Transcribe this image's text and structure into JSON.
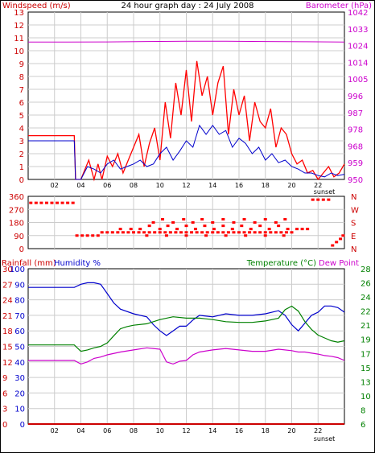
{
  "title": "24 hour graph day : 24 July 2008",
  "colors": {
    "wind": "#ff0000",
    "gust": "#ff0000",
    "speed": "#0000cc",
    "baro": "#cc00cc",
    "rain": "#cc0000",
    "humidity": "#0000cc",
    "temp": "#008000",
    "dew": "#cc00cc",
    "grid": "#cccccc",
    "frame": "#000000"
  },
  "hour_ticks": [
    "02",
    "04",
    "06",
    "08",
    "10",
    "12",
    "14",
    "16",
    "18",
    "20",
    "22"
  ],
  "sunset_label": "sunset",
  "chart_data": [
    {
      "type": "line",
      "title": "24 hour graph day : 24 July 2008",
      "left_label": "Windspeed (m/s)",
      "right_label": "Barometer (hPa)",
      "left_ticks": [
        "13",
        "12",
        "11",
        "10",
        "9",
        "8",
        "7",
        "6",
        "5",
        "4",
        "3",
        "2",
        "1",
        "0"
      ],
      "right_ticks": [
        "1042",
        "1033",
        "1024",
        "1014",
        "1005",
        "996",
        "987",
        "978",
        "968",
        "959",
        "950"
      ],
      "ylim_left": [
        0,
        13
      ],
      "ylim_right": [
        950,
        1042
      ],
      "x_range_hours": [
        0,
        24
      ],
      "series": [
        {
          "key": "gust",
          "x": [
            0,
            3.5,
            3.6,
            4,
            4.6,
            5,
            5.3,
            5.6,
            6,
            6.4,
            6.8,
            7.2,
            7.6,
            8,
            8.4,
            8.8,
            9.2,
            9.6,
            10,
            10.4,
            10.8,
            11.2,
            11.6,
            12,
            12.4,
            12.8,
            13.2,
            13.6,
            14,
            14.4,
            14.8,
            15.2,
            15.6,
            16,
            16.4,
            16.8,
            17.2,
            17.6,
            18,
            18.4,
            18.8,
            19.2,
            19.6,
            20,
            20.4,
            20.8,
            21.2,
            21.6,
            22,
            22.4,
            22.8,
            23.2,
            23.6,
            24
          ],
          "values": [
            3.4,
            3.4,
            0,
            0,
            1.5,
            0,
            1.2,
            0,
            1.8,
            1,
            2,
            0.5,
            1.5,
            2.5,
            3.5,
            1,
            2.8,
            4,
            1.5,
            6,
            3.2,
            7.5,
            5,
            8.5,
            4.5,
            9.2,
            6.5,
            8,
            5,
            7.5,
            8.8,
            3.5,
            7,
            5,
            6.5,
            3,
            6,
            4.5,
            4,
            5.5,
            2.5,
            4,
            3.5,
            2,
            1.2,
            1.5,
            0.5,
            0.7,
            0,
            0.5,
            1,
            0.2,
            0.5,
            1.2
          ]
        },
        {
          "key": "speed",
          "x": [
            0,
            3.5,
            3.6,
            4,
            4.5,
            5,
            5.5,
            6,
            6.5,
            7,
            7.5,
            8,
            8.5,
            9,
            9.5,
            10,
            10.5,
            11,
            11.5,
            12,
            12.5,
            13,
            13.5,
            14,
            14.5,
            15,
            15.5,
            16,
            16.5,
            17,
            17.5,
            18,
            18.5,
            19,
            19.5,
            20,
            20.5,
            21,
            21.5,
            22,
            22.5,
            23,
            23.5,
            24
          ],
          "values": [
            3,
            3,
            0,
            0,
            1,
            0.8,
            0.5,
            1.2,
            1.5,
            0.8,
            1,
            1.2,
            1.5,
            1,
            1.2,
            2,
            2.5,
            1.5,
            2.2,
            3,
            2.5,
            4.2,
            3.5,
            4.2,
            3.5,
            3.8,
            2.5,
            3.2,
            2.8,
            2,
            2.5,
            1.5,
            2,
            1.3,
            1.5,
            1,
            0.8,
            0.5,
            0.5,
            0.3,
            0.2,
            0.5,
            0.3,
            0.4
          ]
        },
        {
          "key": "baro",
          "x": [
            0,
            3,
            6,
            9,
            12,
            15,
            18,
            21,
            24
          ],
          "values": [
            1025.5,
            1025.5,
            1025.6,
            1025.8,
            1026,
            1026,
            1025.8,
            1025.7,
            1025.5
          ]
        }
      ]
    },
    {
      "type": "scatter",
      "title": "Wind direction",
      "left_ticks": [
        "360",
        "270",
        "180",
        "90",
        "0"
      ],
      "right_ticks": [
        "N",
        "W",
        "S",
        "E",
        "N"
      ],
      "ylim": [
        0,
        360
      ],
      "x_range_hours": [
        0,
        24
      ],
      "points": [
        [
          0.2,
          315
        ],
        [
          0.6,
          315
        ],
        [
          1,
          315
        ],
        [
          1.4,
          315
        ],
        [
          1.8,
          315
        ],
        [
          2.2,
          315
        ],
        [
          2.6,
          315
        ],
        [
          3,
          315
        ],
        [
          3.4,
          315
        ],
        [
          3.7,
          90
        ],
        [
          4.1,
          90
        ],
        [
          4.5,
          90
        ],
        [
          4.9,
          90
        ],
        [
          5.3,
          90
        ],
        [
          5.6,
          112
        ],
        [
          6,
          112
        ],
        [
          6.4,
          112
        ],
        [
          6.8,
          112
        ],
        [
          7.2,
          112
        ],
        [
          7.6,
          112
        ],
        [
          8,
          112
        ],
        [
          8.4,
          112
        ],
        [
          8.8,
          112
        ],
        [
          9.2,
          112
        ],
        [
          9.6,
          112
        ],
        [
          10,
          112
        ],
        [
          10.4,
          112
        ],
        [
          10.8,
          112
        ],
        [
          11.2,
          112
        ],
        [
          11.6,
          112
        ],
        [
          12,
          112
        ],
        [
          12.4,
          112
        ],
        [
          12.8,
          112
        ],
        [
          13.2,
          112
        ],
        [
          13.6,
          112
        ],
        [
          14,
          112
        ],
        [
          14.4,
          112
        ],
        [
          14.8,
          112
        ],
        [
          15.2,
          112
        ],
        [
          15.6,
          112
        ],
        [
          16,
          112
        ],
        [
          16.4,
          112
        ],
        [
          16.8,
          112
        ],
        [
          17.2,
          112
        ],
        [
          17.6,
          112
        ],
        [
          18,
          112
        ],
        [
          18.4,
          112
        ],
        [
          18.8,
          112
        ],
        [
          19.2,
          112
        ],
        [
          19.6,
          112
        ],
        [
          20,
          112
        ],
        [
          7,
          135
        ],
        [
          7.8,
          135
        ],
        [
          8.5,
          135
        ],
        [
          9.2,
          157
        ],
        [
          10,
          135
        ],
        [
          10.6,
          157
        ],
        [
          11.3,
          135
        ],
        [
          12,
          157
        ],
        [
          12.7,
          135
        ],
        [
          13.4,
          157
        ],
        [
          14.1,
          135
        ],
        [
          14.8,
          157
        ],
        [
          15.5,
          135
        ],
        [
          16.2,
          157
        ],
        [
          16.9,
          135
        ],
        [
          17.6,
          157
        ],
        [
          18.3,
          135
        ],
        [
          19,
          157
        ],
        [
          19.7,
          135
        ],
        [
          9.5,
          180
        ],
        [
          10.2,
          202
        ],
        [
          11,
          180
        ],
        [
          11.8,
          202
        ],
        [
          12.5,
          180
        ],
        [
          13.2,
          202
        ],
        [
          14,
          180
        ],
        [
          14.8,
          202
        ],
        [
          15.6,
          180
        ],
        [
          16.4,
          202
        ],
        [
          17.2,
          180
        ],
        [
          18,
          202
        ],
        [
          18.8,
          180
        ],
        [
          19.5,
          202
        ],
        [
          9,
          90
        ],
        [
          10.5,
          90
        ],
        [
          12,
          90
        ],
        [
          13.5,
          90
        ],
        [
          15,
          90
        ],
        [
          16.5,
          90
        ],
        [
          18,
          90
        ],
        [
          19.4,
          90
        ],
        [
          20.4,
          135
        ],
        [
          20.8,
          135
        ],
        [
          21.2,
          135
        ],
        [
          21.6,
          337
        ],
        [
          22,
          337
        ],
        [
          22.4,
          337
        ],
        [
          22.8,
          337
        ],
        [
          23.1,
          22
        ],
        [
          23.4,
          45
        ],
        [
          23.7,
          67
        ],
        [
          23.9,
          90
        ]
      ]
    },
    {
      "type": "line",
      "title": "Rainfall / Humidity / Temperature / Dew Point",
      "left_label_rain": "Rainfall (mm)",
      "left_label_humidity": "Humidity %",
      "right_label_temp": "Temperature (°C)",
      "right_label_dew": "Dew Point",
      "humidity_ticks": [
        "100",
        "90",
        "80",
        "70",
        "60",
        "50",
        "40",
        "30",
        "20",
        "10",
        "0"
      ],
      "rain_ticks": [
        "30",
        "27",
        "24",
        "21",
        "18",
        "15",
        "12",
        "9",
        "6",
        "3",
        "0"
      ],
      "temp_ticks": [
        "28",
        "26",
        "24",
        "22",
        "21",
        "19",
        "17",
        "15",
        "13",
        "10",
        "8",
        "6"
      ],
      "ylim_humidity": [
        0,
        100
      ],
      "ylim_temp": [
        6,
        28
      ],
      "x_range_hours": [
        0,
        24
      ],
      "series": [
        {
          "key": "humidity",
          "x": [
            0,
            1,
            2,
            3,
            3.5,
            4,
            4.5,
            5,
            5.5,
            6,
            6.5,
            7,
            8,
            9,
            9.5,
            10,
            10.5,
            11,
            11.5,
            12,
            12.5,
            13,
            14,
            15,
            16,
            17,
            18,
            19,
            19.5,
            20,
            20.5,
            21,
            21.5,
            22,
            22.5,
            23,
            23.5,
            24
          ],
          "values": [
            88,
            88,
            88,
            88,
            88,
            90,
            91,
            91,
            90,
            84,
            78,
            74,
            71,
            69,
            64,
            60,
            57,
            60,
            63,
            63,
            67,
            70,
            69,
            71,
            70,
            70,
            71,
            73,
            70,
            64,
            60,
            65,
            70,
            72,
            76,
            76,
            75,
            72
          ]
        },
        {
          "key": "temp",
          "x": [
            0,
            1,
            2,
            3,
            3.5,
            4,
            4.5,
            5,
            5.5,
            6,
            6.5,
            7,
            7.5,
            8,
            9,
            10,
            11,
            12,
            13,
            14,
            15,
            16,
            17,
            18,
            19,
            19.5,
            20,
            20.5,
            21,
            21.5,
            22,
            22.5,
            23,
            23.5,
            24
          ],
          "values": [
            17.2,
            17.2,
            17.2,
            17.2,
            17.2,
            16.3,
            16.5,
            16.8,
            17,
            17.5,
            18.5,
            19.5,
            19.8,
            20,
            20.2,
            20.8,
            21.2,
            21,
            21,
            20.8,
            20.5,
            20.4,
            20.4,
            20.6,
            21,
            22.2,
            22.7,
            22,
            20.5,
            19.4,
            18.6,
            18.2,
            17.8,
            17.6,
            17.8
          ]
        },
        {
          "key": "dew",
          "x": [
            0,
            1,
            2,
            3,
            3.5,
            4,
            4.5,
            5,
            5.5,
            6,
            7,
            8,
            9,
            9.5,
            10,
            10.5,
            11,
            11.5,
            12,
            12.5,
            13,
            14,
            15,
            16,
            17,
            18,
            19,
            20,
            20.5,
            21,
            22,
            22.5,
            23,
            23.5,
            24
          ],
          "values": [
            15,
            15,
            15,
            15,
            15,
            14.5,
            14.8,
            15.3,
            15.5,
            15.8,
            16.2,
            16.5,
            16.8,
            16.7,
            16.6,
            14.8,
            14.5,
            14.9,
            15,
            15.8,
            16.2,
            16.5,
            16.7,
            16.5,
            16.3,
            16.3,
            16.6,
            16.4,
            16.2,
            16.2,
            15.9,
            15.7,
            15.6,
            15.4,
            15
          ]
        },
        {
          "key": "rain",
          "x": [
            0,
            24
          ],
          "values": [
            0,
            0
          ]
        }
      ]
    }
  ]
}
